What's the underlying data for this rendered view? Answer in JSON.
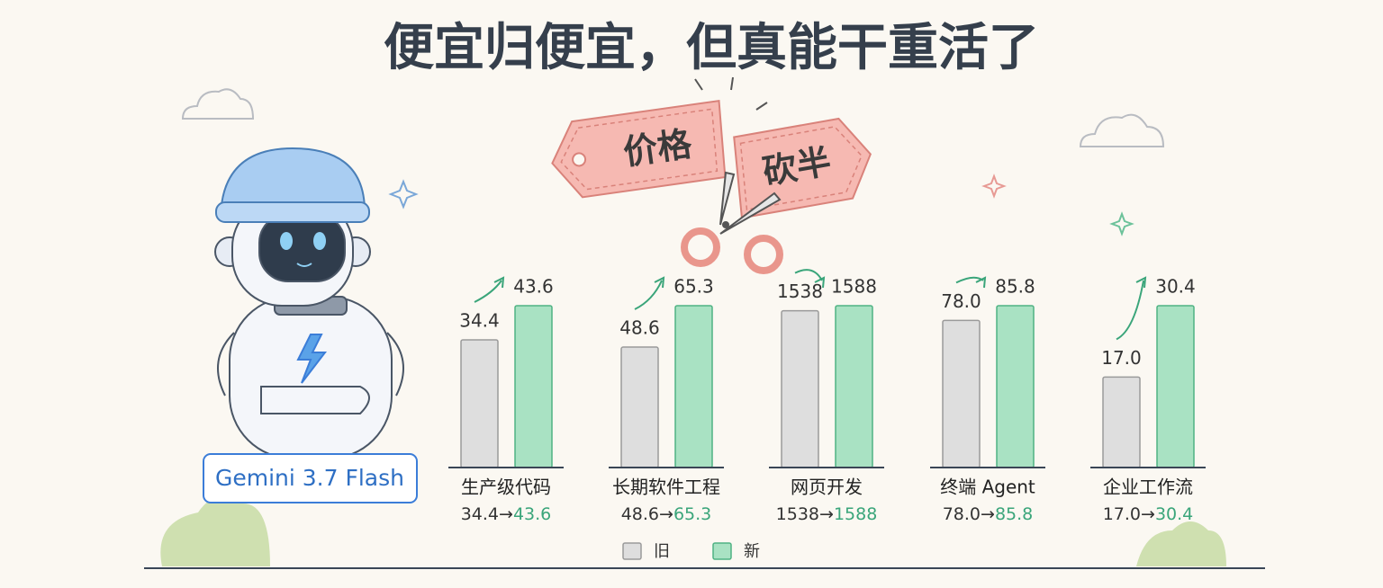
{
  "chart_data": {
    "type": "bar",
    "title": "便宜归便宜，但真能干重活了",
    "annotations": [
      "价格",
      "砍半",
      "Gemini 3.7 Flash"
    ],
    "categories": [
      "生产级代码",
      "长期软件工程",
      "网页开发",
      "终端 Agent",
      "企业工作流"
    ],
    "change_symbol": "→",
    "series": [
      {
        "name": "旧",
        "color": "#dedede",
        "values": [
          34.4,
          48.6,
          1538,
          78.0,
          17.0
        ],
        "value_labels": [
          "34.4",
          "48.6",
          "1538",
          "78.0",
          "17.0"
        ]
      },
      {
        "name": "新",
        "color": "#a9e2c3",
        "values": [
          43.6,
          65.3,
          1588,
          85.8,
          30.4
        ],
        "value_labels": [
          "43.6",
          "65.3",
          "1588",
          "85.8",
          "30.4"
        ]
      }
    ],
    "legend": "bottom"
  }
}
